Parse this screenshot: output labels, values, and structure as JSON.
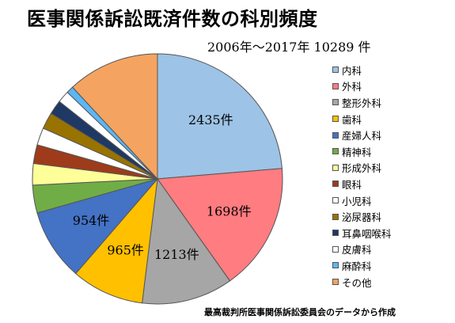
{
  "title": "医事関係訴訟既済件数の科別頻度",
  "subtitle": "2006年～2017年 10289 件",
  "source": "最高裁判所医事関係訴訟委員会のデータから作成",
  "chart_data": {
    "type": "pie",
    "title": "医事関係訴訟既済件数の科別頻度",
    "total": 10289,
    "start_direction": "top-clockwise",
    "legend_position": "right",
    "label_suffix": "件",
    "categories": [
      "内科",
      "外科",
      "整形外科",
      "歯科",
      "産婦人科",
      "精神科",
      "形成外科",
      "眼科",
      "小児科",
      "泌尿器科",
      "耳鼻咽喉科",
      "皮膚科",
      "麻酔科",
      "その他"
    ],
    "values": [
      2435,
      1698,
      1213,
      965,
      954,
      370,
      285,
      250,
      230,
      220,
      190,
      160,
      95,
      1224
    ],
    "labeled": [
      true,
      true,
      true,
      true,
      true,
      false,
      false,
      false,
      false,
      false,
      false,
      false,
      false,
      false
    ],
    "colors": [
      "#9DC3E6",
      "#FF7C80",
      "#A6A6A6",
      "#FFC000",
      "#4472C4",
      "#70AD47",
      "#FFFF99",
      "#9E3B1B",
      "#FFFFFF",
      "#997300",
      "#1F3864",
      "#FFFFFF",
      "#5BB7F5",
      "#F4A460"
    ]
  }
}
